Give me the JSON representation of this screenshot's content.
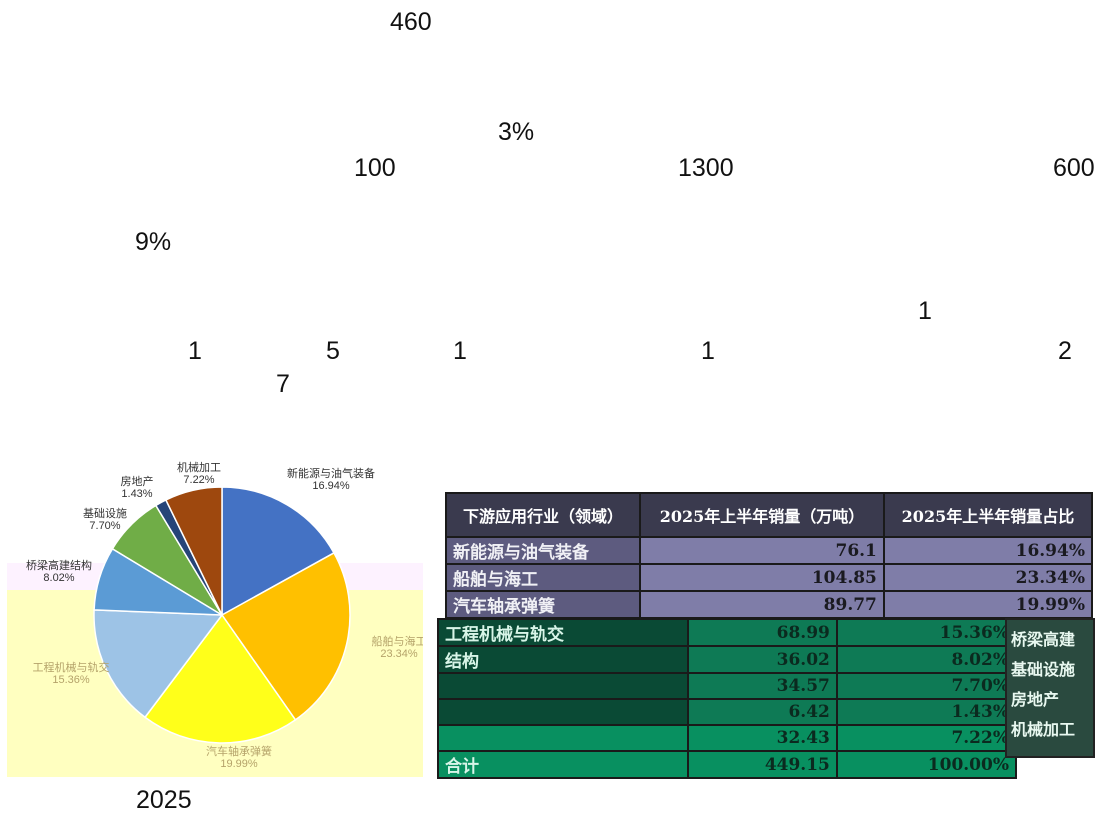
{
  "numbers": {
    "n460": "460",
    "n3pct": "3%",
    "n100": "100",
    "n1300": "1300",
    "n600": "600",
    "n9pct": "9%",
    "n1a": "1",
    "n1b": "1",
    "n5": "5",
    "n1c": "1",
    "n1d": "1",
    "n2": "2",
    "n7": "7",
    "n2025": "2025"
  },
  "chart_data": {
    "type": "pie",
    "title": "",
    "series": [
      {
        "label": "新能源与油气装备",
        "value": 16.94,
        "display": "16.94%",
        "color": "#4472c4"
      },
      {
        "label": "船舶与海工",
        "value": 23.34,
        "display": "23.34%",
        "color": "#ffc000"
      },
      {
        "label": "汽车轴承弹簧",
        "value": 19.99,
        "display": "19.99%",
        "color": "#ffff1a"
      },
      {
        "label": "工程机械与轨交",
        "value": 15.36,
        "display": "15.36%",
        "color": "#9dc3e6"
      },
      {
        "label": "桥梁高建结构",
        "value": 8.02,
        "display": "8.02%",
        "color": "#5b9bd5"
      },
      {
        "label": "基础设施",
        "value": 7.7,
        "display": "7.70%",
        "color": "#70ad47"
      },
      {
        "label": "房地产",
        "value": 1.43,
        "display": "1.43%",
        "color": "#264478"
      },
      {
        "label": "机械加工",
        "value": 7.22,
        "display": "7.22%",
        "color": "#9e480e"
      }
    ]
  },
  "table": {
    "headers": [
      "下游应用行业（领域）",
      "2025年上半年销量（万吨）",
      "2025年上半年销量占比"
    ],
    "top_rows": [
      [
        "新能源与油气装备",
        "76.1",
        "16.94%"
      ],
      [
        "船舶与海工",
        "104.85",
        "23.34%"
      ],
      [
        "汽车轴承弹簧",
        "89.77",
        "19.99%"
      ]
    ],
    "bottom_rows": [
      [
        "工程机械与轨交",
        "68.99",
        "15.36%"
      ],
      [
        "结构",
        "36.02",
        "8.02%"
      ],
      [
        "",
        "34.57",
        "7.70%"
      ],
      [
        "",
        "6.42",
        "1.43%"
      ],
      [
        "",
        "32.43",
        "7.22%"
      ],
      [
        "合计",
        "449.15",
        "100.00%"
      ]
    ],
    "side_labels": [
      "桥梁高建",
      "基础设施",
      "房地产",
      "机械加工"
    ]
  }
}
